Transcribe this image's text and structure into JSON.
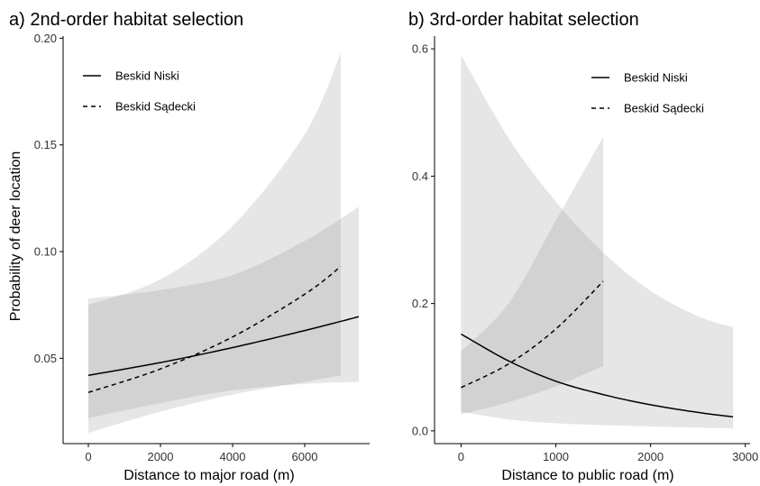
{
  "chart_data": [
    {
      "type": "line",
      "title": "a) 2nd-order habitat selection",
      "xlabel": "Distance to major road (m)",
      "ylabel": "Probability of deer location",
      "xlim": [
        -700,
        7800
      ],
      "ylim": [
        0.01,
        0.201
      ],
      "xticks": [
        0,
        2000,
        4000,
        6000
      ],
      "xtick_labels": [
        "0",
        "2000",
        "4000",
        "6000"
      ],
      "yticks": [
        0.05,
        0.1,
        0.15,
        0.2
      ],
      "ytick_labels": [
        "0.05",
        "0.10",
        "0.15",
        "0.20"
      ],
      "grid": false,
      "legend_position": "top-left",
      "series": [
        {
          "name": "Beskid Niski",
          "line_style": "solid",
          "x": [
            0,
            2000,
            4000,
            6000,
            7500
          ],
          "y": [
            0.042,
            0.048,
            0.055,
            0.063,
            0.0695
          ],
          "ci_lower": [
            0.022,
            0.029,
            0.035,
            0.038,
            0.039
          ],
          "ci_upper": [
            0.078,
            0.082,
            0.089,
            0.105,
            0.121
          ]
        },
        {
          "name": "Beskid Sądecki",
          "line_style": "dashed",
          "x": [
            0,
            2000,
            4000,
            6000,
            7000
          ],
          "y": [
            0.034,
            0.045,
            0.06,
            0.08,
            0.093
          ],
          "ci_lower": [
            0.015,
            0.025,
            0.033,
            0.039,
            0.042
          ],
          "ci_upper": [
            0.075,
            0.087,
            0.112,
            0.155,
            0.193
          ]
        }
      ]
    },
    {
      "type": "line",
      "title": "b) 3rd-order habitat selection",
      "xlabel": "Distance to public road (m)",
      "ylabel": "",
      "xlim": [
        -280,
        3050
      ],
      "ylim": [
        -0.02,
        0.62
      ],
      "xticks": [
        0,
        1000,
        2000,
        3000
      ],
      "xtick_labels": [
        "0",
        "1000",
        "2000",
        "3000"
      ],
      "yticks": [
        0.0,
        0.2,
        0.4,
        0.6
      ],
      "ytick_labels": [
        "0.0",
        "0.2",
        "0.4",
        "0.6"
      ],
      "grid": false,
      "legend_position": "top-right",
      "series": [
        {
          "name": "Beskid Niski",
          "line_style": "solid",
          "x": [
            0,
            500,
            1000,
            1500,
            2000,
            2500,
            2870
          ],
          "y": [
            0.152,
            0.11,
            0.078,
            0.057,
            0.041,
            0.029,
            0.022
          ],
          "ci_lower": [
            0.03,
            0.018,
            0.012,
            0.009,
            0.007,
            0.005,
            0.004
          ],
          "ci_upper": [
            0.59,
            0.46,
            0.36,
            0.28,
            0.22,
            0.18,
            0.163
          ]
        },
        {
          "name": "Beskid Sądecki",
          "line_style": "dashed",
          "x": [
            0,
            500,
            1000,
            1500
          ],
          "y": [
            0.068,
            0.105,
            0.16,
            0.235
          ],
          "ci_lower": [
            0.026,
            0.045,
            0.07,
            0.102
          ],
          "ci_upper": [
            0.125,
            0.2,
            0.33,
            0.462
          ]
        }
      ]
    }
  ]
}
